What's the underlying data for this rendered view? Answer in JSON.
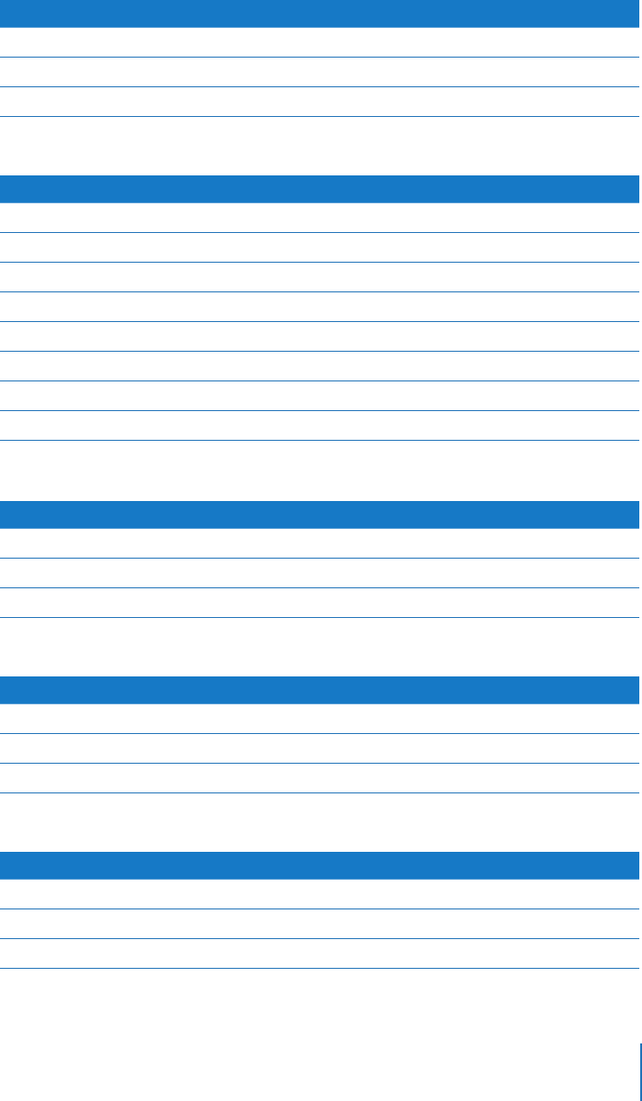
{
  "colors": {
    "header": "#1679c6",
    "rule": "#1f72b8"
  },
  "tables": [
    {
      "header": "",
      "rows": [
        "",
        "",
        ""
      ]
    },
    {
      "header": "",
      "rows": [
        "",
        "",
        "",
        "",
        "",
        "",
        "",
        ""
      ]
    },
    {
      "header": "",
      "rows": [
        "",
        "",
        ""
      ]
    },
    {
      "header": "",
      "rows": [
        "",
        "",
        ""
      ]
    },
    {
      "header": "",
      "rows": [
        "",
        "",
        ""
      ]
    }
  ]
}
